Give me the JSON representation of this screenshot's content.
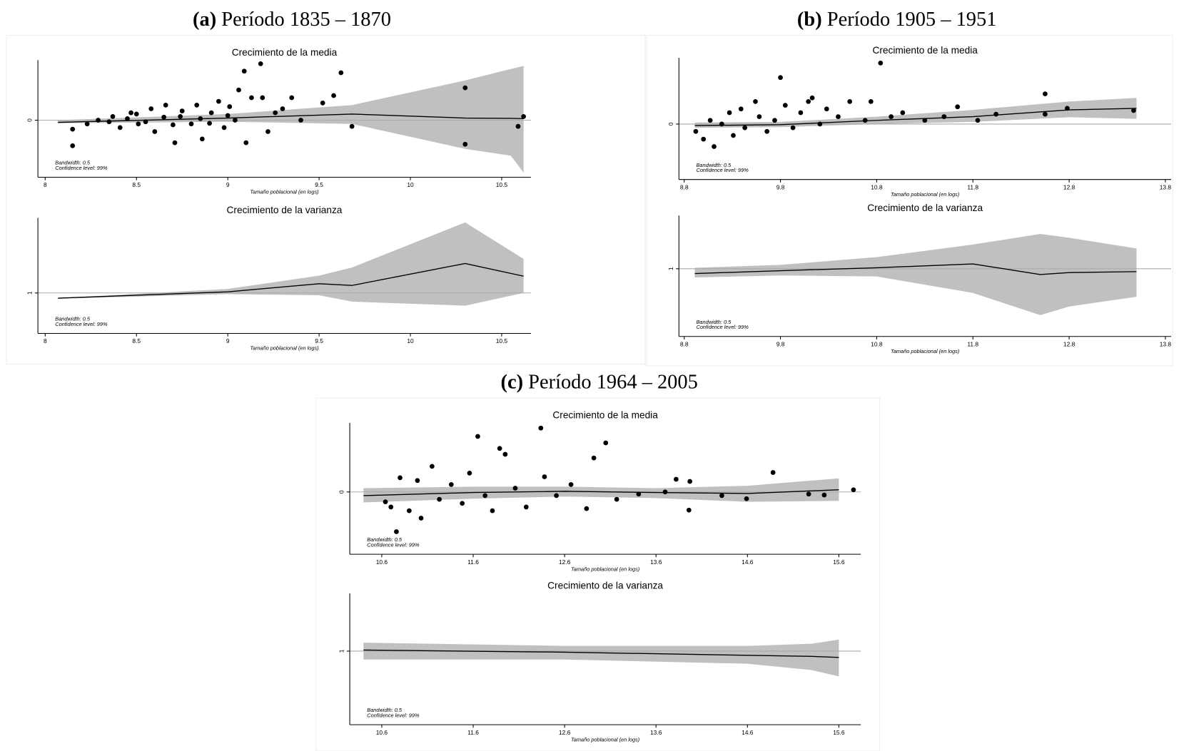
{
  "panels": [
    {
      "label": "(a)",
      "title": "Período 1835 – 1870"
    },
    {
      "label": "(b)",
      "title": "Período 1905 – 1951"
    },
    {
      "label": "(c)",
      "title": "Período 1964 – 2005"
    }
  ],
  "chart_data": [
    {
      "type": "scatter",
      "title": "Crecimiento de la media",
      "xlabel": "Tamaño poblacional (en logs)",
      "annotations": [
        "Bandwidth: 0.5",
        "Confidence level: 99%"
      ],
      "xlim": [
        7.96,
        10.66
      ],
      "xticks": [
        8,
        8.5,
        9,
        9.5,
        10,
        10.5
      ],
      "ylim": [
        -1.85,
        1.95
      ],
      "yticks": [
        0
      ],
      "points": {
        "x": [
          8.15,
          8.15,
          8.23,
          8.29,
          8.37,
          8.41,
          8.47,
          8.51,
          8.58,
          8.6,
          8.66,
          8.71,
          8.74,
          8.8,
          8.83,
          8.86,
          8.91,
          8.95,
          8.98,
          9.01,
          9.04,
          9.06,
          9.09,
          9.1,
          9.13,
          9.18,
          9.19,
          9.22,
          9.26,
          9.3,
          9.35,
          9.4,
          9.52,
          9.58,
          9.62,
          9.68,
          10.3,
          10.3,
          10.59,
          10.62,
          8.45,
          8.55,
          8.65,
          8.7,
          8.85,
          8.9,
          9.0,
          8.35,
          8.5,
          8.75
        ],
        "y": [
          -0.83,
          -0.29,
          -0.12,
          0,
          0.12,
          -0.24,
          0.24,
          -0.12,
          0.37,
          -0.37,
          0.49,
          -0.73,
          0.12,
          -0.12,
          0.49,
          -0.61,
          0.24,
          0.61,
          -0.24,
          0.44,
          0,
          0.98,
          1.59,
          -0.73,
          0.73,
          1.83,
          0.73,
          -0.37,
          0.24,
          0.37,
          0.73,
          0,
          0.56,
          0.8,
          1.54,
          -0.2,
          1.05,
          -0.78,
          -0.2,
          0.12,
          0.05,
          -0.05,
          0.1,
          -0.15,
          0.05,
          -0.1,
          0.15,
          -0.05,
          0.2,
          0.3
        ]
      },
      "fit": {
        "x": [
          8.07,
          9,
          9.68,
          10.3,
          10.55,
          10.62
        ],
        "values": [
          -0.07,
          0.07,
          0.2,
          0.07,
          0.06,
          0.05
        ],
        "lower": [
          -0.1,
          -0.05,
          -0.12,
          -0.93,
          -1.15,
          -1.7
        ],
        "upper": [
          0,
          0.2,
          0.49,
          1.29,
          1.66,
          1.76
        ]
      }
    },
    {
      "type": "line",
      "title": "Crecimiento de la varianza",
      "xlabel": "Tamaño poblacional (en logs)",
      "annotations": [
        "Bandwidth: 0.5",
        "Confidence level: 99%"
      ],
      "xlim": [
        7.96,
        10.66
      ],
      "xticks": [
        8,
        8.5,
        9,
        9.5,
        10,
        10.5
      ],
      "ylim": [
        0.3,
        2.3
      ],
      "yticks": [
        1
      ],
      "fit": {
        "x": [
          8.07,
          9,
          9.5,
          9.68,
          10.3,
          10.62
        ],
        "values": [
          0.91,
          1.02,
          1.16,
          1.13,
          1.51,
          1.29
        ],
        "lower": [
          0.9,
          0.98,
          0.96,
          0.85,
          0.78,
          1.0
        ],
        "upper": [
          0.91,
          1.07,
          1.3,
          1.44,
          2.22,
          1.59
        ]
      }
    },
    {
      "type": "scatter",
      "title": "Crecimiento de la media",
      "xlabel": "Tamaño poblacional (en logs)",
      "annotations": [
        "Bandwidth: 0.5",
        "Confidence level: 99%"
      ],
      "xlim": [
        8.745,
        13.86
      ],
      "xticks": [
        8.8,
        9.8,
        10.8,
        11.8,
        12.8,
        13.8
      ],
      "ylim": [
        -1.8,
        2.15
      ],
      "yticks": [
        0
      ],
      "points": {
        "x": [
          8.92,
          9.0,
          9.07,
          9.11,
          9.19,
          9.27,
          9.31,
          9.39,
          9.43,
          9.54,
          9.58,
          9.66,
          9.74,
          9.8,
          9.85,
          9.93,
          10.01,
          10.09,
          10.13,
          10.21,
          10.28,
          10.4,
          10.52,
          10.68,
          10.74,
          10.84,
          10.95,
          11.07,
          11.3,
          11.5,
          11.64,
          11.85,
          12.04,
          12.55,
          12.55,
          12.78,
          13.47
        ],
        "y": [
          -0.24,
          -0.49,
          0.12,
          -0.73,
          0,
          0.37,
          -0.37,
          0.49,
          -0.12,
          0.73,
          0.24,
          -0.24,
          0.12,
          1.51,
          0.61,
          -0.12,
          0.37,
          0.73,
          0.85,
          0,
          0.49,
          0.24,
          0.73,
          0.12,
          0.73,
          1.98,
          0.24,
          0.37,
          0.12,
          0.24,
          0.56,
          0.12,
          0.32,
          0.98,
          0.32,
          0.51,
          0.44
        ]
      },
      "fit": {
        "x": [
          8.91,
          9.8,
          10.8,
          11.8,
          12.8,
          13.5
        ],
        "values": [
          -0.05,
          -0.02,
          0.12,
          0.24,
          0.46,
          0.51
        ],
        "lower": [
          -0.12,
          -0.1,
          0,
          0.07,
          0.22,
          0.17
        ],
        "upper": [
          0.05,
          0.07,
          0.24,
          0.46,
          0.73,
          0.85
        ]
      }
    },
    {
      "type": "line",
      "title": "Crecimiento de la varianza",
      "xlabel": "Tamaño poblacional (en logs)",
      "annotations": [
        "Bandwidth: 0.5",
        "Confidence level: 99%"
      ],
      "xlim": [
        8.745,
        13.86
      ],
      "xticks": [
        8.8,
        9.8,
        10.8,
        11.8,
        12.8,
        13.8
      ],
      "ylim": [
        0.3,
        1.55
      ],
      "yticks": [
        1
      ],
      "fit": {
        "x": [
          8.91,
          9.8,
          10.8,
          11.8,
          12.5,
          12.8,
          13.5
        ],
        "values": [
          0.95,
          0.98,
          1.01,
          1.05,
          0.94,
          0.96,
          0.97
        ],
        "lower": [
          0.91,
          0.93,
          0.92,
          0.75,
          0.52,
          0.61,
          0.71
        ],
        "upper": [
          1.01,
          1.04,
          1.12,
          1.25,
          1.36,
          1.32,
          1.21
        ]
      }
    },
    {
      "type": "scatter",
      "title": "Crecimiento de la media",
      "xlabel": "Tamaño poblacional (en logs)",
      "annotations": [
        "Bandwidth: 0.5",
        "Confidence level: 99%"
      ],
      "xlim": [
        10.25,
        15.84
      ],
      "xticks": [
        10.6,
        11.6,
        12.6,
        13.6,
        14.6,
        15.6
      ],
      "ylim": [
        -2.02,
        2.24
      ],
      "yticks": [
        0
      ],
      "points": {
        "x": [
          10.64,
          10.7,
          10.76,
          10.8,
          10.9,
          10.99,
          11.03,
          11.15,
          11.23,
          11.36,
          11.48,
          11.56,
          11.65,
          11.73,
          11.81,
          11.89,
          11.95,
          12.06,
          12.18,
          12.34,
          12.38,
          12.51,
          12.67,
          12.84,
          12.92,
          13.05,
          13.17,
          13.41,
          13.7,
          13.82,
          13.96,
          13.97,
          14.32,
          14.59,
          14.88,
          15.27,
          15.44,
          15.76
        ],
        "y": [
          -0.32,
          -0.49,
          -1.29,
          0.46,
          -0.61,
          0.37,
          -0.85,
          0.83,
          -0.24,
          0.24,
          -0.37,
          0.61,
          1.8,
          -0.12,
          -0.61,
          1.41,
          1.22,
          0.12,
          -0.49,
          2.07,
          0.49,
          -0.12,
          0.24,
          -0.54,
          1.1,
          1.59,
          -0.24,
          -0.07,
          0,
          0.41,
          -0.59,
          0.34,
          -0.12,
          -0.22,
          0.63,
          -0.07,
          -0.1,
          0.07
        ]
      },
      "fit": {
        "x": [
          10.4,
          11.6,
          12.6,
          13.6,
          14.6,
          15.6
        ],
        "values": [
          -0.12,
          -0.02,
          0.02,
          -0.02,
          -0.05,
          0.07
        ],
        "lower": [
          -0.34,
          -0.22,
          -0.15,
          -0.2,
          -0.32,
          -0.29
        ],
        "upper": [
          0.12,
          0.17,
          0.17,
          0.12,
          0.2,
          0.44
        ]
      }
    },
    {
      "type": "line",
      "title": "Crecimiento de la varianza",
      "xlabel": "Tamaño poblacional (en logs)",
      "annotations": [
        "Bandwidth: 0.5",
        "Confidence level: 99%"
      ],
      "xlim": [
        10.25,
        15.84
      ],
      "xticks": [
        10.6,
        11.6,
        12.6,
        13.6,
        14.6,
        15.6
      ],
      "ylim": [
        0.3,
        1.55
      ],
      "yticks": [
        1
      ],
      "fit": {
        "x": [
          10.4,
          12.6,
          14.6,
          15.3,
          15.6
        ],
        "values": [
          1.01,
          0.99,
          0.96,
          0.95,
          0.94
        ],
        "lower": [
          0.92,
          0.92,
          0.88,
          0.82,
          0.76
        ],
        "upper": [
          1.08,
          1.05,
          1.05,
          1.07,
          1.11
        ]
      }
    }
  ]
}
